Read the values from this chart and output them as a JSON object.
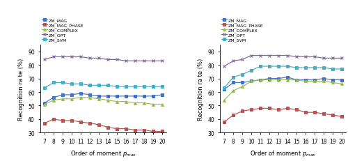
{
  "x": [
    7,
    8,
    9,
    10,
    11,
    12,
    13,
    14,
    15,
    16,
    17,
    18,
    19,
    20
  ],
  "left": {
    "ZM_MAG": [
      52,
      56,
      58,
      58,
      59,
      58,
      57,
      57,
      57,
      57,
      57,
      57,
      57,
      58
    ],
    "ZM_MAG_PHASE": [
      37,
      40,
      39,
      39,
      38,
      37,
      36,
      34,
      33,
      33,
      32,
      32,
      31,
      31
    ],
    "ZM_COMPLEX": [
      51,
      54,
      55,
      55,
      56,
      56,
      55,
      54,
      53,
      53,
      52,
      52,
      51,
      51
    ],
    "ZM_OPT": [
      84,
      86,
      86,
      86,
      86,
      85,
      85,
      84,
      84,
      83,
      83,
      83,
      83,
      83
    ],
    "ZM_SVM": [
      63,
      67,
      67,
      66,
      66,
      65,
      65,
      65,
      64,
      64,
      64,
      64,
      64,
      64
    ]
  },
  "right": {
    "ZM_MAG": [
      62,
      67,
      67,
      68,
      69,
      70,
      70,
      71,
      69,
      69,
      69,
      70,
      69,
      69
    ],
    "ZM_MAG_PHASE": [
      38,
      43,
      46,
      47,
      48,
      48,
      47,
      48,
      47,
      45,
      45,
      44,
      43,
      42
    ],
    "ZM_COMPLEX": [
      54,
      61,
      64,
      68,
      69,
      69,
      69,
      69,
      69,
      68,
      68,
      68,
      67,
      66
    ],
    "ZM_OPT": [
      79,
      83,
      84,
      87,
      87,
      87,
      87,
      87,
      86,
      86,
      86,
      85,
      85,
      85
    ],
    "ZM_SVM": [
      63,
      71,
      73,
      76,
      79,
      79,
      79,
      79,
      78,
      78,
      78,
      78,
      77,
      77
    ]
  },
  "colors": {
    "ZM_MAG": "#4472c4",
    "ZM_MAG_PHASE": "#c0504d",
    "ZM_COMPLEX": "#9bbb59",
    "ZM_OPT": "#8064a2",
    "ZM_SVM": "#4bacc6"
  },
  "markers": {
    "ZM_MAG": "s",
    "ZM_MAG_PHASE": "s",
    "ZM_COMPLEX": "^",
    "ZM_OPT": "x",
    "ZM_SVM": "s"
  },
  "left_ylim": [
    30,
    95
  ],
  "right_ylim": [
    30,
    95
  ],
  "left_yticks": [
    30,
    40,
    50,
    60,
    70,
    80,
    90
  ],
  "right_yticks": [
    30,
    40,
    50,
    60,
    70,
    80,
    90
  ],
  "xlabel": "Order of moment $p_{max}$",
  "ylabel": "Recognition ra te (%)",
  "legend_order": [
    "ZM_MAG",
    "ZM_MAG_PHASE",
    "ZM_COMPLEX",
    "ZM_OPT",
    "ZM_SVM"
  ]
}
